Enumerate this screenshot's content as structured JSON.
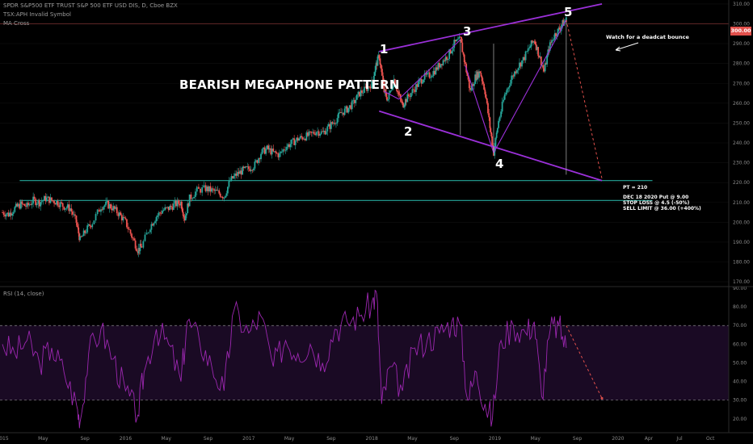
{
  "header": {
    "symbol_line": "SPDR S&P500 ETF TRUST S&P 500 ETF USD DIS, D, Cboe BZX",
    "indicator_1": "TSX:APH Invalid Symbol",
    "indicator_2": "MA Cross"
  },
  "annotations": {
    "pattern_title": "BEARISH MEGAPHONE PATTERN",
    "pivot_1": "1",
    "pivot_2": "2",
    "pivot_3": "3",
    "pivot_4": "4",
    "pivot_5": "5",
    "deadcat_note": "Watch for a deadcat bounce",
    "price_target": "PT = 210",
    "trade_line_1": "DEC 18 2020 Put @ 9.00",
    "trade_line_2": "STOP LOSS @ 4.5 (-50%)",
    "trade_line_3": "SELL LIMIT @ 36.00 (+400%)"
  },
  "current_price_tag": "300.00",
  "colors": {
    "background": "#000000",
    "trendline": "#9b30d9",
    "support": "#26a69a",
    "rsi_line": "#9c27b0",
    "rsi_band": "#1a0a24",
    "price_tag": "#e2504c",
    "projection": "#e2504c",
    "candle_up": "#26a69a",
    "candle_down": "#ef5350"
  },
  "chart_data": [
    {
      "type": "candlestick",
      "ylim": [
        168,
        312
      ],
      "y_ticks": [
        "170.00",
        "180.00",
        "190.00",
        "200.00",
        "210.00",
        "220.00",
        "230.00",
        "240.00",
        "250.00",
        "260.00",
        "270.00",
        "280.00",
        "290.00",
        "300.00",
        "310.00"
      ],
      "x_ticks": [
        "2015",
        "May",
        "Sep",
        "2016",
        "May",
        "Sep",
        "2017",
        "May",
        "Sep",
        "2018",
        "May",
        "Sep",
        "2019",
        "May",
        "Sep",
        "2020",
        "Apr",
        "Jul",
        "Oct"
      ],
      "x_tick_values": [
        2015.0,
        2015.33,
        2015.67,
        2016.0,
        2016.33,
        2016.67,
        2017.0,
        2017.33,
        2017.67,
        2018.0,
        2018.33,
        2018.67,
        2019.0,
        2019.33,
        2019.67,
        2020.0,
        2020.25,
        2020.5,
        2020.75
      ],
      "xlim": [
        2014.98,
        2020.9
      ],
      "series": [
        {
          "points": [
            [
              2015.0,
              205
            ],
            [
              2015.05,
              204
            ],
            [
              2015.1,
              207
            ],
            [
              2015.15,
              209
            ],
            [
              2015.2,
              208
            ],
            [
              2015.25,
              211
            ],
            [
              2015.3,
              210
            ],
            [
              2015.35,
              212
            ],
            [
              2015.4,
              211
            ],
            [
              2015.45,
              210
            ],
            [
              2015.5,
              208
            ],
            [
              2015.55,
              207
            ],
            [
              2015.6,
              200
            ],
            [
              2015.63,
              191
            ],
            [
              2015.68,
              196
            ],
            [
              2015.73,
              200
            ],
            [
              2015.8,
              208
            ],
            [
              2015.85,
              209
            ],
            [
              2015.9,
              207
            ],
            [
              2015.95,
              204
            ],
            [
              2016.0,
              200
            ],
            [
              2016.05,
              193
            ],
            [
              2016.1,
              186
            ],
            [
              2016.13,
              188
            ],
            [
              2016.2,
              198
            ],
            [
              2016.25,
              203
            ],
            [
              2016.3,
              206
            ],
            [
              2016.35,
              207
            ],
            [
              2016.4,
              209
            ],
            [
              2016.45,
              210
            ],
            [
              2016.48,
              202
            ],
            [
              2016.52,
              212
            ],
            [
              2016.58,
              216
            ],
            [
              2016.65,
              217
            ],
            [
              2016.7,
              216
            ],
            [
              2016.75,
              215
            ],
            [
              2016.8,
              213
            ],
            [
              2016.85,
              221
            ],
            [
              2016.9,
              224
            ],
            [
              2016.95,
              226
            ],
            [
              2017.0,
              227
            ],
            [
              2017.05,
              229
            ],
            [
              2017.1,
              235
            ],
            [
              2017.15,
              237
            ],
            [
              2017.2,
              235
            ],
            [
              2017.25,
              234
            ],
            [
              2017.3,
              238
            ],
            [
              2017.35,
              240
            ],
            [
              2017.4,
              242
            ],
            [
              2017.45,
              243
            ],
            [
              2017.5,
              244
            ],
            [
              2017.55,
              246
            ],
            [
              2017.6,
              245
            ],
            [
              2017.65,
              248
            ],
            [
              2017.7,
              251
            ],
            [
              2017.75,
              255
            ],
            [
              2017.8,
              257
            ],
            [
              2017.85,
              260
            ],
            [
              2017.9,
              265
            ],
            [
              2017.95,
              267
            ],
            [
              2018.0,
              270
            ],
            [
              2018.03,
              278
            ],
            [
              2018.06,
              284
            ],
            [
              2018.1,
              266
            ],
            [
              2018.13,
              262
            ],
            [
              2018.18,
              272
            ],
            [
              2018.22,
              264
            ],
            [
              2018.25,
              259
            ],
            [
              2018.28,
              262
            ],
            [
              2018.33,
              266
            ],
            [
              2018.38,
              270
            ],
            [
              2018.42,
              273
            ],
            [
              2018.47,
              274
            ],
            [
              2018.52,
              277
            ],
            [
              2018.57,
              281
            ],
            [
              2018.62,
              284
            ],
            [
              2018.67,
              290
            ],
            [
              2018.72,
              292
            ],
            [
              2018.76,
              279
            ],
            [
              2018.8,
              266
            ],
            [
              2018.84,
              273
            ],
            [
              2018.88,
              276
            ],
            [
              2018.92,
              266
            ],
            [
              2018.96,
              248
            ],
            [
              2018.99,
              235
            ],
            [
              2019.03,
              251
            ],
            [
              2019.08,
              264
            ],
            [
              2019.13,
              272
            ],
            [
              2019.18,
              278
            ],
            [
              2019.23,
              282
            ],
            [
              2019.28,
              288
            ],
            [
              2019.32,
              292
            ],
            [
              2019.36,
              284
            ],
            [
              2019.4,
              276
            ],
            [
              2019.44,
              288
            ],
            [
              2019.48,
              294
            ],
            [
              2019.52,
              297
            ],
            [
              2019.55,
              300
            ],
            [
              2019.58,
              302
            ]
          ]
        }
      ],
      "support_levels": [
        221,
        211
      ],
      "megaphone_upper": [
        [
          2018.06,
          286
        ],
        [
          2019.87,
          310
        ]
      ],
      "megaphone_lower": [
        [
          2018.06,
          256
        ],
        [
          2019.87,
          221
        ]
      ],
      "projection": [
        [
          2019.58,
          302
        ],
        [
          2019.87,
          222
        ]
      ]
    },
    {
      "type": "line",
      "title": "RSI (14, close)",
      "ylim": [
        13,
        90
      ],
      "y_ticks": [
        "20.00",
        "30.00",
        "40.00",
        "50.00",
        "60.00",
        "70.00",
        "80.00",
        "90.00"
      ],
      "reference_levels": [
        70,
        30
      ],
      "series": [
        {
          "points": [
            [
              2015.0,
              60
            ],
            [
              2015.1,
              55
            ],
            [
              2015.2,
              62
            ],
            [
              2015.3,
              50
            ],
            [
              2015.4,
              58
            ],
            [
              2015.5,
              45
            ],
            [
              2015.6,
              28
            ],
            [
              2015.63,
              18
            ],
            [
              2015.7,
              55
            ],
            [
              2015.8,
              68
            ],
            [
              2015.9,
              52
            ],
            [
              2016.0,
              35
            ],
            [
              2016.1,
              22
            ],
            [
              2016.15,
              45
            ],
            [
              2016.25,
              68
            ],
            [
              2016.35,
              60
            ],
            [
              2016.45,
              40
            ],
            [
              2016.5,
              72
            ],
            [
              2016.6,
              62
            ],
            [
              2016.7,
              48
            ],
            [
              2016.8,
              35
            ],
            [
              2016.88,
              78
            ],
            [
              2017.0,
              66
            ],
            [
              2017.1,
              75
            ],
            [
              2017.2,
              48
            ],
            [
              2017.3,
              62
            ],
            [
              2017.4,
              55
            ],
            [
              2017.5,
              60
            ],
            [
              2017.6,
              50
            ],
            [
              2017.7,
              68
            ],
            [
              2017.8,
              72
            ],
            [
              2017.9,
              75
            ],
            [
              2018.0,
              82
            ],
            [
              2018.04,
              87
            ],
            [
              2018.08,
              28
            ],
            [
              2018.15,
              48
            ],
            [
              2018.25,
              35
            ],
            [
              2018.35,
              58
            ],
            [
              2018.45,
              62
            ],
            [
              2018.55,
              66
            ],
            [
              2018.65,
              72
            ],
            [
              2018.72,
              70
            ],
            [
              2018.78,
              30
            ],
            [
              2018.85,
              45
            ],
            [
              2018.92,
              28
            ],
            [
              2018.98,
              20
            ],
            [
              2019.05,
              62
            ],
            [
              2019.15,
              70
            ],
            [
              2019.25,
              66
            ],
            [
              2019.32,
              72
            ],
            [
              2019.38,
              32
            ],
            [
              2019.45,
              68
            ],
            [
              2019.52,
              70
            ],
            [
              2019.58,
              58
            ]
          ]
        }
      ],
      "projection": [
        [
          2019.58,
          70
        ],
        [
          2019.87,
          31
        ]
      ]
    }
  ]
}
